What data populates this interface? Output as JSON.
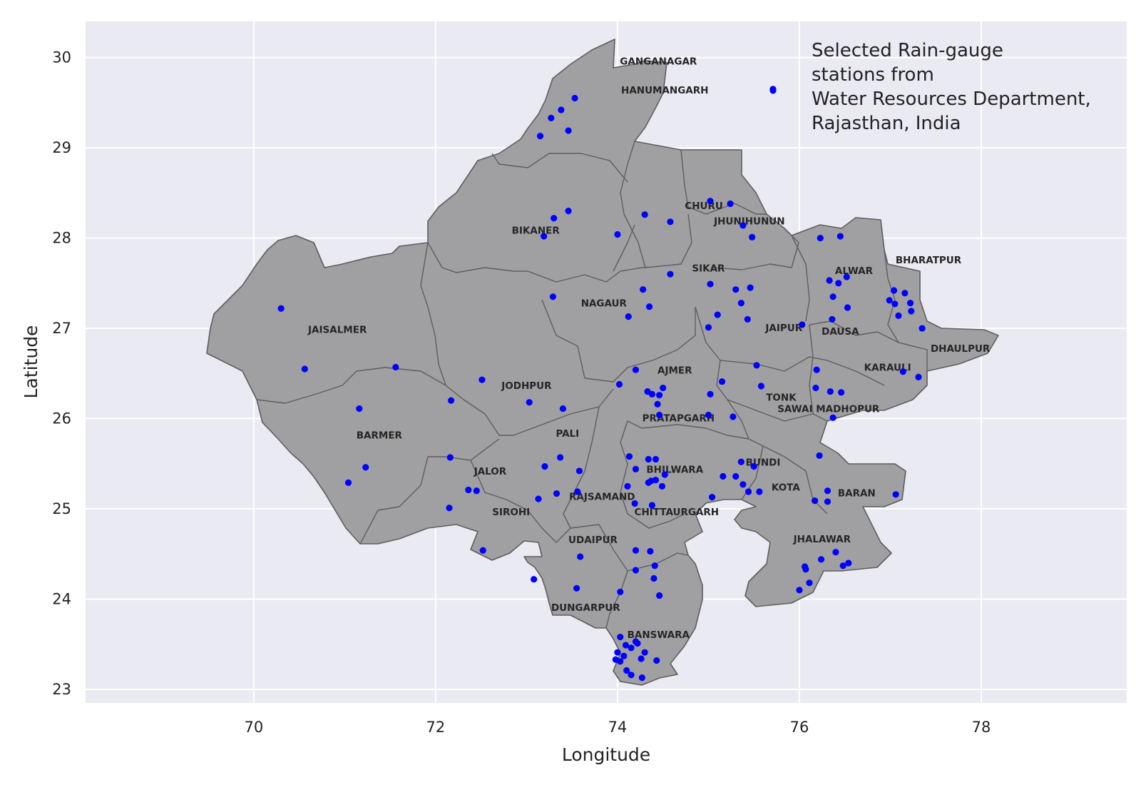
{
  "chart_data": {
    "type": "scatter",
    "xlabel": "Longitude",
    "ylabel": "Latitude",
    "xlim": [
      68.15,
      79.6
    ],
    "ylim": [
      22.85,
      30.4
    ],
    "xticks": [
      70,
      72,
      74,
      76,
      78
    ],
    "yticks": [
      23,
      24,
      25,
      26,
      27,
      28,
      29,
      30
    ],
    "grid": true,
    "legend_placement": "top-right",
    "colors": {
      "plot_bg": "#eaeaf2",
      "grid": "#ffffff",
      "region_fill": "#a0a0a2",
      "region_edge": "#5e5e5e",
      "points": "#0000ff"
    },
    "legend": [
      "Selected Rain-gauge",
      "stations from",
      "Water Resources Department,",
      "Rajasthan, India"
    ],
    "districts": [
      {
        "name": "GANGANAGAR",
        "lon": 74.45,
        "lat": 29.92
      },
      {
        "name": "HANUMANGARH",
        "lon": 74.52,
        "lat": 29.6
      },
      {
        "name": "CHURU",
        "lon": 74.95,
        "lat": 28.32
      },
      {
        "name": "JHUNJHUNUN",
        "lon": 75.45,
        "lat": 28.15
      },
      {
        "name": "BIKANER",
        "lon": 73.1,
        "lat": 28.05
      },
      {
        "name": "BHARATPUR",
        "lon": 77.42,
        "lat": 27.72
      },
      {
        "name": "SIKAR",
        "lon": 75.0,
        "lat": 27.63
      },
      {
        "name": "ALWAR",
        "lon": 76.6,
        "lat": 27.6
      },
      {
        "name": "NAGAUR",
        "lon": 73.85,
        "lat": 27.24
      },
      {
        "name": "JAISALMER",
        "lon": 70.92,
        "lat": 26.95
      },
      {
        "name": "JAIPUR",
        "lon": 75.83,
        "lat": 26.97
      },
      {
        "name": "DAUSA",
        "lon": 76.45,
        "lat": 26.93
      },
      {
        "name": "DHAULPUR",
        "lon": 77.77,
        "lat": 26.74
      },
      {
        "name": "KARAULI",
        "lon": 76.97,
        "lat": 26.53
      },
      {
        "name": "AJMER",
        "lon": 74.63,
        "lat": 26.5
      },
      {
        "name": "JODHPUR",
        "lon": 73.0,
        "lat": 26.33
      },
      {
        "name": "TONK",
        "lon": 75.8,
        "lat": 26.2
      },
      {
        "name": "SAWAI MADHOPUR",
        "lon": 76.32,
        "lat": 26.07
      },
      {
        "name": "PRATAPGARH",
        "lon": 74.67,
        "lat": 25.97
      },
      {
        "name": "BARMER",
        "lon": 71.38,
        "lat": 25.78
      },
      {
        "name": "PALI",
        "lon": 73.45,
        "lat": 25.8
      },
      {
        "name": "BUNDI",
        "lon": 75.6,
        "lat": 25.48
      },
      {
        "name": "BHILWARA",
        "lon": 74.63,
        "lat": 25.4
      },
      {
        "name": "JALOR",
        "lon": 72.6,
        "lat": 25.38
      },
      {
        "name": "KOTA",
        "lon": 75.85,
        "lat": 25.2
      },
      {
        "name": "BARAN",
        "lon": 76.63,
        "lat": 25.14
      },
      {
        "name": "RAJSAMAND",
        "lon": 73.83,
        "lat": 25.1
      },
      {
        "name": "SIROHI",
        "lon": 72.83,
        "lat": 24.93
      },
      {
        "name": "CHITTAURGARH",
        "lon": 74.65,
        "lat": 24.93
      },
      {
        "name": "JHALAWAR",
        "lon": 76.25,
        "lat": 24.63
      },
      {
        "name": "UDAIPUR",
        "lon": 73.73,
        "lat": 24.62
      },
      {
        "name": "DUNGARPUR",
        "lon": 73.65,
        "lat": 23.87
      },
      {
        "name": "BANSWARA",
        "lon": 74.45,
        "lat": 23.57
      }
    ],
    "stations": [
      [
        75.71,
        29.65
      ],
      [
        73.53,
        29.55
      ],
      [
        73.38,
        29.42
      ],
      [
        73.27,
        29.33
      ],
      [
        73.46,
        29.19
      ],
      [
        73.15,
        29.13
      ],
      [
        75.02,
        28.41
      ],
      [
        75.24,
        28.38
      ],
      [
        73.46,
        28.3
      ],
      [
        73.3,
        28.22
      ],
      [
        74.3,
        28.26
      ],
      [
        74.58,
        28.18
      ],
      [
        75.38,
        28.14
      ],
      [
        75.48,
        28.01
      ],
      [
        73.19,
        28.02
      ],
      [
        74.0,
        28.04
      ],
      [
        76.23,
        28.0
      ],
      [
        76.45,
        28.02
      ],
      [
        76.52,
        27.57
      ],
      [
        76.33,
        27.53
      ],
      [
        76.43,
        27.5
      ],
      [
        74.58,
        27.6
      ],
      [
        75.02,
        27.49
      ],
      [
        75.3,
        27.43
      ],
      [
        75.46,
        27.45
      ],
      [
        74.28,
        27.43
      ],
      [
        76.37,
        27.35
      ],
      [
        77.04,
        27.42
      ],
      [
        77.16,
        27.39
      ],
      [
        73.29,
        27.35
      ],
      [
        75.36,
        27.28
      ],
      [
        76.99,
        27.31
      ],
      [
        77.05,
        27.27
      ],
      [
        77.22,
        27.28
      ],
      [
        76.53,
        27.23
      ],
      [
        74.35,
        27.24
      ],
      [
        77.23,
        27.19
      ],
      [
        75.1,
        27.15
      ],
      [
        77.09,
        27.14
      ],
      [
        74.12,
        27.13
      ],
      [
        75.43,
        27.1
      ],
      [
        76.36,
        27.1
      ],
      [
        76.03,
        27.04
      ],
      [
        75.0,
        27.01
      ],
      [
        77.35,
        27.0
      ],
      [
        70.3,
        27.22
      ],
      [
        70.56,
        26.55
      ],
      [
        71.56,
        26.57
      ],
      [
        75.53,
        26.59
      ],
      [
        76.19,
        26.54
      ],
      [
        77.14,
        26.52
      ],
      [
        77.31,
        26.46
      ],
      [
        72.51,
        26.43
      ],
      [
        74.2,
        26.54
      ],
      [
        75.15,
        26.41
      ],
      [
        74.02,
        26.38
      ],
      [
        74.5,
        26.34
      ],
      [
        75.58,
        26.36
      ],
      [
        76.18,
        26.34
      ],
      [
        74.33,
        26.3
      ],
      [
        74.38,
        26.27
      ],
      [
        76.34,
        26.3
      ],
      [
        76.46,
        26.29
      ],
      [
        72.17,
        26.2
      ],
      [
        73.03,
        26.18
      ],
      [
        75.02,
        26.27
      ],
      [
        74.46,
        26.26
      ],
      [
        74.44,
        26.16
      ],
      [
        71.16,
        26.11
      ],
      [
        73.4,
        26.11
      ],
      [
        74.46,
        26.04
      ],
      [
        75.0,
        26.04
      ],
      [
        75.27,
        26.02
      ],
      [
        76.37,
        26.01
      ],
      [
        72.16,
        25.57
      ],
      [
        73.37,
        25.57
      ],
      [
        74.13,
        25.58
      ],
      [
        74.34,
        25.55
      ],
      [
        74.42,
        25.55
      ],
      [
        75.36,
        25.52
      ],
      [
        76.22,
        25.59
      ],
      [
        73.2,
        25.47
      ],
      [
        71.23,
        25.46
      ],
      [
        74.2,
        25.44
      ],
      [
        75.5,
        25.47
      ],
      [
        73.58,
        25.42
      ],
      [
        74.52,
        25.38
      ],
      [
        75.16,
        25.36
      ],
      [
        75.3,
        25.36
      ],
      [
        74.37,
        25.31
      ],
      [
        74.42,
        25.32
      ],
      [
        71.04,
        25.29
      ],
      [
        74.34,
        25.29
      ],
      [
        75.38,
        25.27
      ],
      [
        74.11,
        25.25
      ],
      [
        74.49,
        25.25
      ],
      [
        75.44,
        25.19
      ],
      [
        75.56,
        25.19
      ],
      [
        76.31,
        25.2
      ],
      [
        72.36,
        25.21
      ],
      [
        72.45,
        25.2
      ],
      [
        73.33,
        25.17
      ],
      [
        73.56,
        25.19
      ],
      [
        77.06,
        25.16
      ],
      [
        73.13,
        25.11
      ],
      [
        75.04,
        25.13
      ],
      [
        76.17,
        25.09
      ],
      [
        76.31,
        25.08
      ],
      [
        74.19,
        25.06
      ],
      [
        74.38,
        25.04
      ],
      [
        72.15,
        25.01
      ],
      [
        72.52,
        24.54
      ],
      [
        74.2,
        24.54
      ],
      [
        74.36,
        24.53
      ],
      [
        76.4,
        24.52
      ],
      [
        73.59,
        24.47
      ],
      [
        76.24,
        24.44
      ],
      [
        76.54,
        24.4
      ],
      [
        74.41,
        24.37
      ],
      [
        76.48,
        24.37
      ],
      [
        76.06,
        24.36
      ],
      [
        76.07,
        24.33
      ],
      [
        74.2,
        24.32
      ],
      [
        74.4,
        24.23
      ],
      [
        73.08,
        24.22
      ],
      [
        76.11,
        24.18
      ],
      [
        73.55,
        24.12
      ],
      [
        76.0,
        24.1
      ],
      [
        74.03,
        24.08
      ],
      [
        74.46,
        24.04
      ],
      [
        74.03,
        23.58
      ],
      [
        74.2,
        23.53
      ],
      [
        74.22,
        23.51
      ],
      [
        74.09,
        23.49
      ],
      [
        74.15,
        23.46
      ],
      [
        74.3,
        23.41
      ],
      [
        74.0,
        23.41
      ],
      [
        74.07,
        23.37
      ],
      [
        74.26,
        23.34
      ],
      [
        73.98,
        23.33
      ],
      [
        74.03,
        23.31
      ],
      [
        74.43,
        23.32
      ],
      [
        74.1,
        23.21
      ],
      [
        74.15,
        23.16
      ],
      [
        74.27,
        23.13
      ]
    ]
  }
}
